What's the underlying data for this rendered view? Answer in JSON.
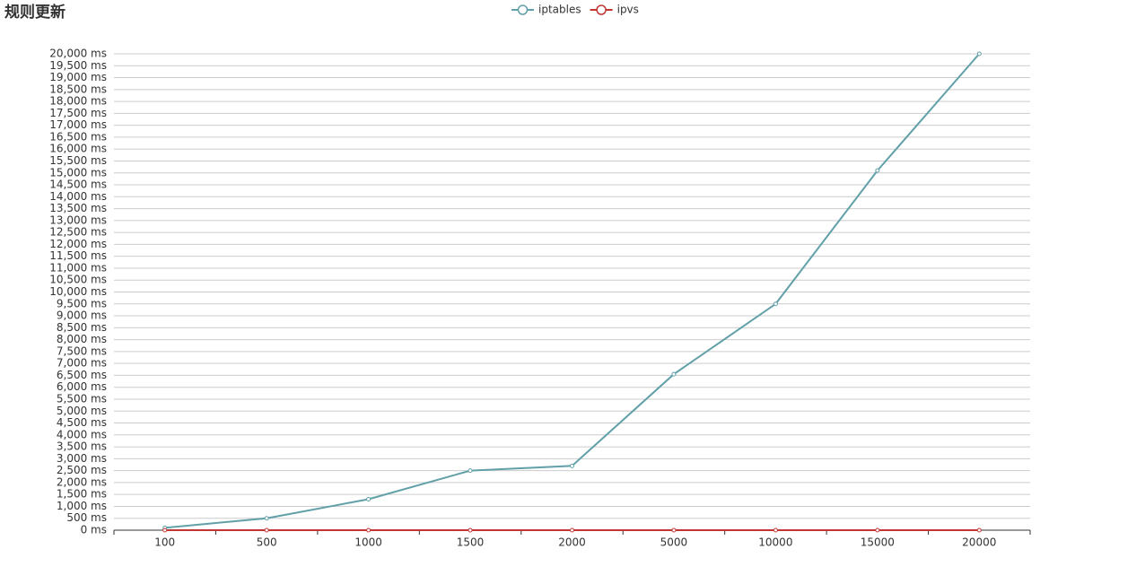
{
  "chart_data": {
    "type": "line",
    "title": "规则更新",
    "categories": [
      "100",
      "500",
      "1000",
      "1500",
      "2000",
      "5000",
      "10000",
      "15000",
      "20000"
    ],
    "series": [
      {
        "name": "iptables",
        "color": "#61a0a8",
        "values": [
          100,
          500,
          1300,
          2500,
          2700,
          6550,
          9500,
          15100,
          20000
        ]
      },
      {
        "name": "ipvs",
        "color": "#c23531",
        "values": [
          0,
          0,
          0,
          0,
          0,
          0,
          0,
          0,
          0
        ]
      }
    ],
    "ylim": [
      0,
      20000
    ],
    "yticks": [
      {
        "value": 0,
        "label": "0 ms"
      },
      {
        "value": 500,
        "label": "500 ms"
      },
      {
        "value": 1000,
        "label": "1,000 ms"
      },
      {
        "value": 1500,
        "label": "1,500 ms"
      },
      {
        "value": 2000,
        "label": "2,000 ms"
      },
      {
        "value": 2500,
        "label": "2,500 ms"
      },
      {
        "value": 3000,
        "label": "3,000 ms"
      },
      {
        "value": 3500,
        "label": "3,500 ms"
      },
      {
        "value": 4000,
        "label": "4,000 ms"
      },
      {
        "value": 4500,
        "label": "4,500 ms"
      },
      {
        "value": 5000,
        "label": "5,000 ms"
      },
      {
        "value": 5500,
        "label": "5,500 ms"
      },
      {
        "value": 6000,
        "label": "6,000 ms"
      },
      {
        "value": 6500,
        "label": "6,500 ms"
      },
      {
        "value": 7000,
        "label": "7,000 ms"
      },
      {
        "value": 7500,
        "label": "7,500 ms"
      },
      {
        "value": 8000,
        "label": "8,000 ms"
      },
      {
        "value": 8500,
        "label": "8,500 ms"
      },
      {
        "value": 9000,
        "label": "9,000 ms"
      },
      {
        "value": 9500,
        "label": "9,500 ms"
      },
      {
        "value": 10000,
        "label": "10,000 ms"
      },
      {
        "value": 10500,
        "label": "10,500 ms"
      },
      {
        "value": 11000,
        "label": "11,000 ms"
      },
      {
        "value": 11500,
        "label": "11,500 ms"
      },
      {
        "value": 12000,
        "label": "12,000 ms"
      },
      {
        "value": 12500,
        "label": "12,500 ms"
      },
      {
        "value": 13000,
        "label": "13,000 ms"
      },
      {
        "value": 13500,
        "label": "13,500 ms"
      },
      {
        "value": 14000,
        "label": "14,000 ms"
      },
      {
        "value": 14500,
        "label": "14,500 ms"
      },
      {
        "value": 15000,
        "label": "15,000 ms"
      },
      {
        "value": 15500,
        "label": "15,500 ms"
      },
      {
        "value": 16000,
        "label": "16,000 ms"
      },
      {
        "value": 16500,
        "label": "16,500 ms"
      },
      {
        "value": 17000,
        "label": "17,000 ms"
      },
      {
        "value": 17500,
        "label": "17,500 ms"
      },
      {
        "value": 18000,
        "label": "18,000 ms"
      },
      {
        "value": 18500,
        "label": "18,500 ms"
      },
      {
        "value": 19000,
        "label": "19,000 ms"
      },
      {
        "value": 19500,
        "label": "19,500 ms"
      },
      {
        "value": 20000,
        "label": "20,000 ms"
      }
    ],
    "grid": true
  }
}
